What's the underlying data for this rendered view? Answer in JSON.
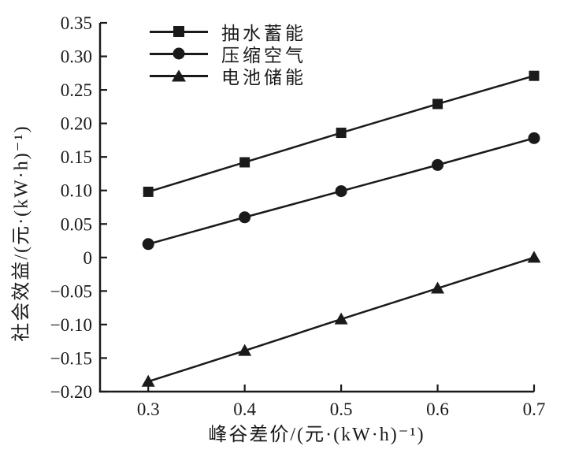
{
  "figure": {
    "background": "#ffffff",
    "ink_color": "#1a1a1a"
  },
  "chart_data": {
    "type": "line",
    "title": "",
    "x": [
      0.3,
      0.4,
      0.5,
      0.6,
      0.7
    ],
    "series": [
      {
        "id": "pumped-storage",
        "name": "抽水蓄能",
        "marker": "square",
        "color": "#1a1a1a",
        "values": [
          0.098,
          0.142,
          0.186,
          0.229,
          0.271
        ]
      },
      {
        "id": "compressed-air",
        "name": "压缩空气",
        "marker": "circle",
        "color": "#1a1a1a",
        "values": [
          0.02,
          0.06,
          0.099,
          0.138,
          0.178
        ]
      },
      {
        "id": "battery-storage",
        "name": "电池储能",
        "marker": "triangle",
        "color": "#1a1a1a",
        "values": [
          -0.185,
          -0.139,
          -0.092,
          -0.046,
          0.0
        ]
      }
    ],
    "xlabel": "峰谷差价/(元·(kW·h)⁻¹)",
    "ylabel": "社会效益/(元·(kW·h)⁻¹)",
    "xlim": [
      0.25,
      0.7
    ],
    "ylim": [
      -0.2,
      0.35
    ],
    "xticks": {
      "values": [
        0.3,
        0.4,
        0.5,
        0.6,
        0.7
      ],
      "labels": [
        "0.3",
        "0.4",
        "0.5",
        "0.6",
        "0.7"
      ]
    },
    "yticks": {
      "values": [
        0.35,
        0.3,
        0.25,
        0.2,
        0.15,
        0.1,
        0.05,
        0,
        -0.05,
        -0.1,
        -0.15,
        -0.2
      ],
      "labels": [
        "0.35",
        "0.30",
        "0.25",
        "0.20",
        "0.15",
        "0.10",
        "0.05",
        "0",
        "−0.05",
        "−0.10",
        "−0.15",
        "−0.20"
      ]
    },
    "legend_position": "top-inside",
    "grid": false
  }
}
